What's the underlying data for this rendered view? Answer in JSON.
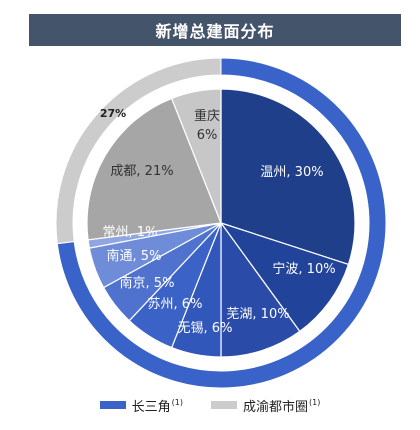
{
  "title": "新增总建面分布",
  "chart_data": {
    "type": "pie",
    "outer_ring": {
      "slices": [
        {
          "label": "长三角",
          "value": 73,
          "display": "73%",
          "color": "#3a63c9"
        },
        {
          "label": "成渝都市圈",
          "value": 27,
          "display": "27%",
          "color": "#cccccc"
        }
      ]
    },
    "inner_pie": {
      "slices": [
        {
          "label": "温州",
          "value": 30,
          "display": "温州, 30%",
          "color": "#1f3f8a"
        },
        {
          "label": "宁波",
          "value": 10,
          "display": "宁波, 10%",
          "color": "#22439a"
        },
        {
          "label": "芜湖",
          "value": 10,
          "display": "芜湖, 10%",
          "color": "#2a4ca8"
        },
        {
          "label": "无锡",
          "value": 6,
          "display": "无锡, 6%",
          "color": "#3157ba"
        },
        {
          "label": "苏州",
          "value": 6,
          "display": "苏州, 6%",
          "color": "#3b62c6"
        },
        {
          "label": "南京",
          "value": 5,
          "display": "南京, 5%",
          "color": "#4f72cf"
        },
        {
          "label": "南通",
          "value": 5,
          "display": "南通, 5%",
          "color": "#6e8cd8"
        },
        {
          "label": "常州",
          "value": 1,
          "display": "常州, 1%",
          "color": "#8fa6e2"
        },
        {
          "label": "成都",
          "value": 21,
          "display": "成都, 21%",
          "color": "#a6a6a6"
        },
        {
          "label": "重庆",
          "value": 6,
          "display": "重庆\n6%",
          "color": "#c7c7c7"
        }
      ]
    },
    "legend": [
      {
        "label": "长三角",
        "note": "(1)",
        "color": "#3a63c9"
      },
      {
        "label": "成渝都市圈",
        "note": "(1)",
        "color": "#cccccc"
      }
    ]
  }
}
